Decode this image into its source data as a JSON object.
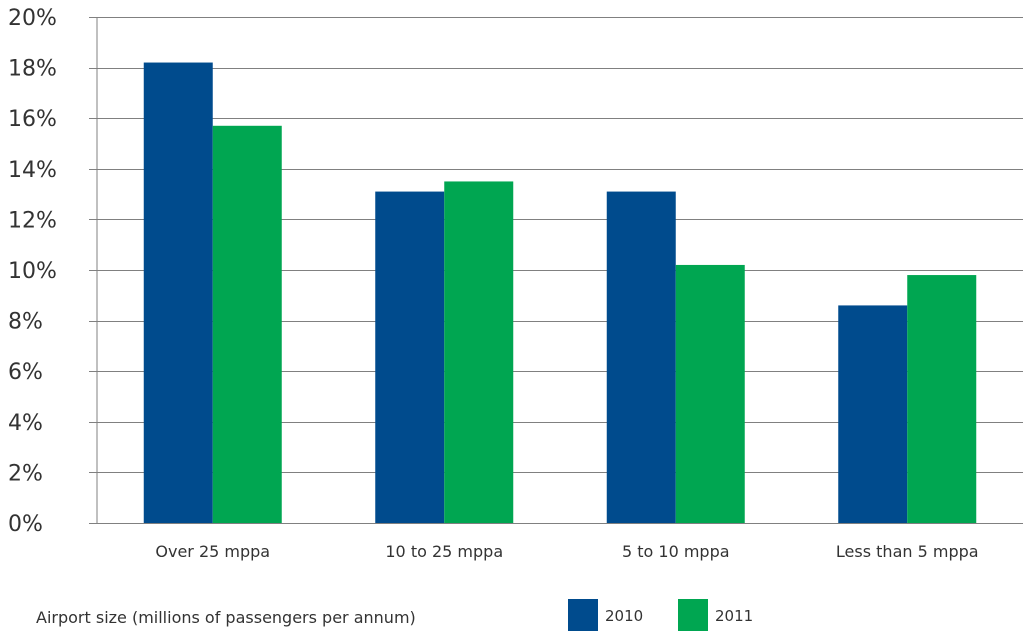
{
  "chart_data": {
    "type": "bar",
    "categories": [
      "Over 25 mppa",
      "10 to 25 mppa",
      "5 to 10 mppa",
      "Less than 5 mppa"
    ],
    "series": [
      {
        "name": "2010",
        "color": "#004B8D",
        "values": [
          18.2,
          13.1,
          13.1,
          8.6
        ]
      },
      {
        "name": "2011",
        "color": "#00A651",
        "values": [
          15.7,
          13.5,
          10.2,
          9.8
        ]
      }
    ],
    "title": "",
    "xlabel": "Airport size (millions of passengers per annum)",
    "ylabel": "",
    "ylim": [
      0,
      20
    ],
    "yticks": [
      0,
      2,
      4,
      6,
      8,
      10,
      12,
      14,
      16,
      18,
      20
    ],
    "ytick_format": "percent",
    "grid": true,
    "legend_position": "bottom",
    "gridline_color": "#808080"
  }
}
